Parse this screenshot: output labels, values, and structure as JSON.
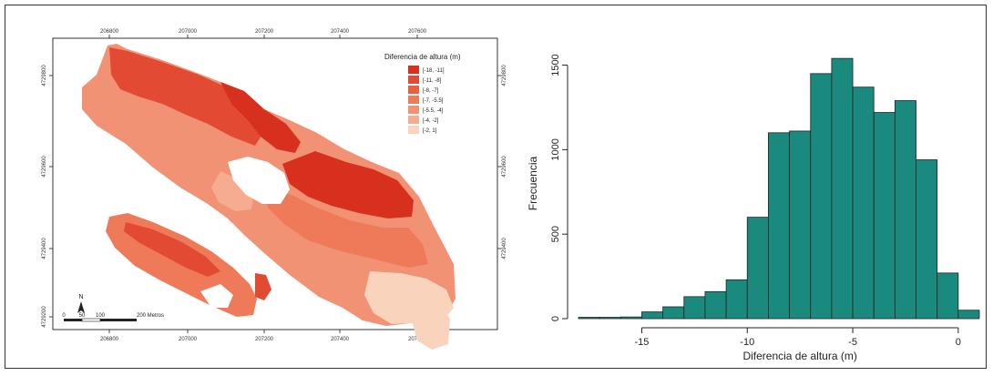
{
  "map": {
    "top_ticks": [
      "206800",
      "207000",
      "207200",
      "207400",
      "207600"
    ],
    "bottom_ticks": [
      "206800",
      "207000",
      "207200",
      "207400",
      "207600"
    ],
    "left_ticks": [
      "4729800",
      "4729600",
      "4729400",
      "4729200"
    ],
    "right_ticks": [
      "4729800",
      "4729600",
      "4729400"
    ],
    "legend": {
      "title": "Diferencia de altura (m)",
      "classes": [
        {
          "label": "[-18, -11]",
          "color": "#d7301f"
        },
        {
          "label": "[-11, -8]",
          "color": "#e34a33"
        },
        {
          "label": "[-8, -7]",
          "color": "#e8603f"
        },
        {
          "label": "[-7, -5.5]",
          "color": "#ee7a5a"
        },
        {
          "label": "[-5.5, -4]",
          "color": "#f19274"
        },
        {
          "label": "[-4, -2]",
          "color": "#f5ac90"
        },
        {
          "label": "[-2, 1]",
          "color": "#f9d3bc"
        }
      ]
    },
    "north_label": "N",
    "scalebar": {
      "labels": [
        "0",
        "50",
        "100",
        "200 Metros"
      ]
    }
  },
  "chart_data": {
    "type": "bar",
    "subtype": "histogram",
    "title": "",
    "xlabel": "Diferencia de altura (m)",
    "ylabel": "Frecuencia",
    "xlim": [
      -18,
      1
    ],
    "ylim": [
      0,
      1600
    ],
    "xticks": [
      -15,
      -10,
      -5,
      0
    ],
    "yticks": [
      0,
      500,
      1000,
      1500
    ],
    "bin_width": 1,
    "bins": [
      {
        "x0": -18,
        "x1": -17,
        "count": 8
      },
      {
        "x0": -17,
        "x1": -16,
        "count": 8
      },
      {
        "x0": -16,
        "x1": -15,
        "count": 10
      },
      {
        "x0": -15,
        "x1": -14,
        "count": 40
      },
      {
        "x0": -14,
        "x1": -13,
        "count": 70
      },
      {
        "x0": -13,
        "x1": -12,
        "count": 130
      },
      {
        "x0": -12,
        "x1": -11,
        "count": 160
      },
      {
        "x0": -11,
        "x1": -10,
        "count": 230
      },
      {
        "x0": -10,
        "x1": -9,
        "count": 600
      },
      {
        "x0": -9,
        "x1": -8,
        "count": 1100
      },
      {
        "x0": -8,
        "x1": -7,
        "count": 1110
      },
      {
        "x0": -7,
        "x1": -6,
        "count": 1450
      },
      {
        "x0": -6,
        "x1": -5,
        "count": 1540
      },
      {
        "x0": -5,
        "x1": -4,
        "count": 1370
      },
      {
        "x0": -4,
        "x1": -3,
        "count": 1220
      },
      {
        "x0": -3,
        "x1": -2,
        "count": 1290
      },
      {
        "x0": -2,
        "x1": -1,
        "count": 940
      },
      {
        "x0": -1,
        "x1": 0,
        "count": 270
      },
      {
        "x0": 0,
        "x1": 1,
        "count": 50
      }
    ],
    "bar_color": "#1a8a7e",
    "grid": false,
    "legend": "none"
  }
}
